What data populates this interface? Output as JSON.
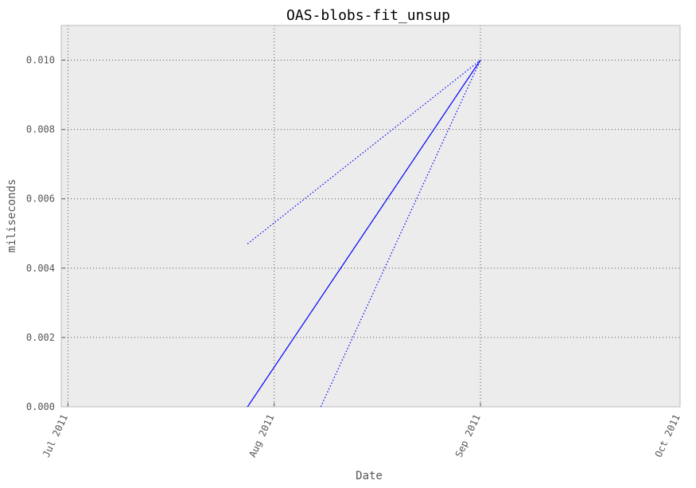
{
  "chart_data": {
    "type": "line",
    "title": "OAS-blobs-fit_unsup",
    "xlabel": "Date",
    "ylabel": "miliseconds",
    "x_ticks": [
      "Jul 2011",
      "Aug 2011",
      "Sep 2011",
      "Oct 2011"
    ],
    "y_ticks": [
      "0.000",
      "0.002",
      "0.004",
      "0.006",
      "0.008",
      "0.010"
    ],
    "xlim": [
      "2011-06-30",
      "2011-10-01"
    ],
    "ylim": [
      0,
      0.011
    ],
    "grid": true,
    "series": [
      {
        "style": "solid",
        "color": "#0000ff",
        "points": [
          {
            "x": "2011-07-28",
            "y": 0.0
          },
          {
            "x": "2011-09-01",
            "y": 0.01
          }
        ]
      },
      {
        "style": "dotted",
        "color": "#0000ff",
        "points": [
          {
            "x": "2011-07-28",
            "y": 0.0047
          },
          {
            "x": "2011-09-01",
            "y": 0.01
          }
        ]
      },
      {
        "style": "dotted",
        "color": "#0000ff",
        "points": [
          {
            "x": "2011-08-08",
            "y": 0.0
          },
          {
            "x": "2011-09-01",
            "y": 0.01
          }
        ]
      }
    ],
    "colors": {
      "plot_bg": "#ececec",
      "frame": "#bcbcbc",
      "grid": "#555555"
    }
  }
}
